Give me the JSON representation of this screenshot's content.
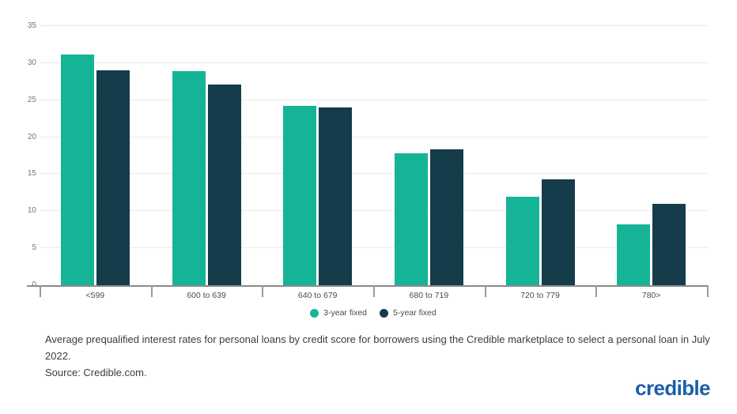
{
  "chart_data": {
    "type": "bar",
    "categories": [
      "<599",
      "600 to 639",
      "640 to 679",
      "680 to 719",
      "720 to 779",
      "780>"
    ],
    "series": [
      {
        "name": "3-year fixed",
        "color": "#16b497",
        "values": [
          31.2,
          28.9,
          24.2,
          17.8,
          12.0,
          8.2
        ]
      },
      {
        "name": "5-year fixed",
        "color": "#153c4b",
        "values": [
          29.0,
          27.1,
          24.0,
          18.4,
          14.3,
          11.0
        ]
      }
    ],
    "title": "",
    "xlabel": "",
    "ylabel": "",
    "ylim": [
      0,
      35
    ],
    "yticks": [
      0,
      5,
      10,
      15,
      20,
      25,
      30,
      35
    ],
    "grid": true,
    "legend_position": "bottom"
  },
  "caption": {
    "line1": "Average prequalified interest rates for personal loans by credit score for borrowers using the Credible marketplace to select a personal loan in July 2022.",
    "line2": "Source: Credible.com."
  },
  "branding": {
    "logo_text": "credible",
    "logo_color": "#1b5ea9"
  },
  "colors": {
    "background": "#ffffff",
    "gridline": "#ebebeb",
    "axis": "#8b8b8b",
    "y_label": "#757575",
    "x_label": "#4c4c4c",
    "caption": "#3c3c3c"
  }
}
